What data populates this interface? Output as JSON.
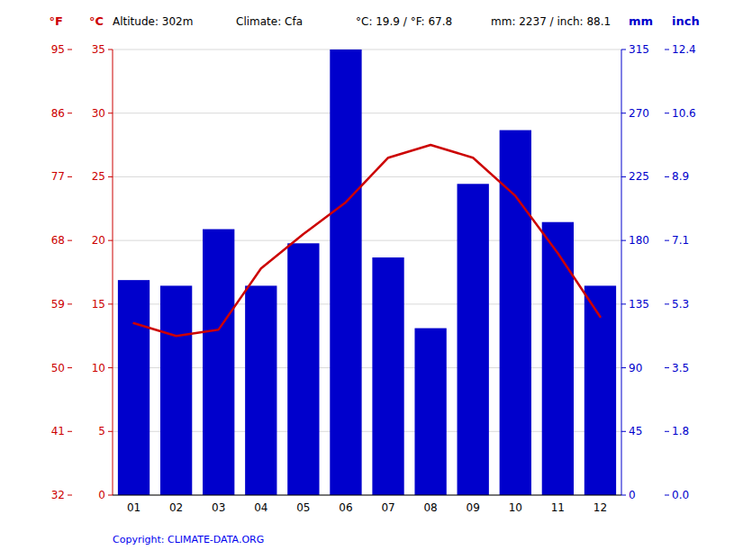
{
  "chart_data": {
    "type": "bar",
    "categories": [
      "01",
      "02",
      "03",
      "04",
      "05",
      "06",
      "07",
      "08",
      "09",
      "10",
      "11",
      "12"
    ],
    "series": [
      {
        "type": "bar",
        "color": "#0000cc",
        "axis": "y2",
        "values": [
          152,
          148,
          188,
          148,
          178,
          315,
          168,
          118,
          220,
          258,
          193,
          148
        ]
      },
      {
        "type": "line",
        "color": "#cc0000",
        "values": [
          13.5,
          12.5,
          13.0,
          17.8,
          20.5,
          23.0,
          26.5,
          27.5,
          26.5,
          23.5,
          19.0,
          14.0
        ]
      }
    ],
    "ylim": [
      0,
      35
    ],
    "yticks": [
      0,
      5,
      10,
      15,
      20,
      25,
      30,
      35
    ],
    "yticks_f": [
      {
        "value": 0,
        "label": "32"
      },
      {
        "value": 5,
        "label": "41"
      },
      {
        "value": 10,
        "label": "50"
      },
      {
        "value": 15,
        "label": "59"
      },
      {
        "value": 20,
        "label": "68"
      },
      {
        "value": 25,
        "label": "77"
      },
      {
        "value": 30,
        "label": "86"
      },
      {
        "value": 35,
        "label": "95"
      }
    ],
    "y2lim": [
      0,
      315
    ],
    "y2ticks": [
      0,
      45,
      90,
      135,
      180,
      225,
      270,
      315
    ],
    "y2ticks_inch": [
      {
        "value": 0,
        "label": "0.0"
      },
      {
        "value": 45,
        "label": "1.8"
      },
      {
        "value": 90,
        "label": "3.5"
      },
      {
        "value": 135,
        "label": "5.3"
      },
      {
        "value": 180,
        "label": "7.1"
      },
      {
        "value": 225,
        "label": "8.9"
      },
      {
        "value": 270,
        "label": "10.6"
      },
      {
        "value": 315,
        "label": "12.4"
      }
    ],
    "ylabel": "°C",
    "ylabel_f": "°F",
    "y2label": "mm",
    "y2label_inch": "inch",
    "annotations": [
      "Altitude: 302m",
      "Climate: Cfa",
      "°C: 19.9 / °F: 67.8",
      "mm: 2237 / inch: 88.1",
      "Copyright: CLIMATE-DATA.ORG"
    ],
    "grid": true
  }
}
